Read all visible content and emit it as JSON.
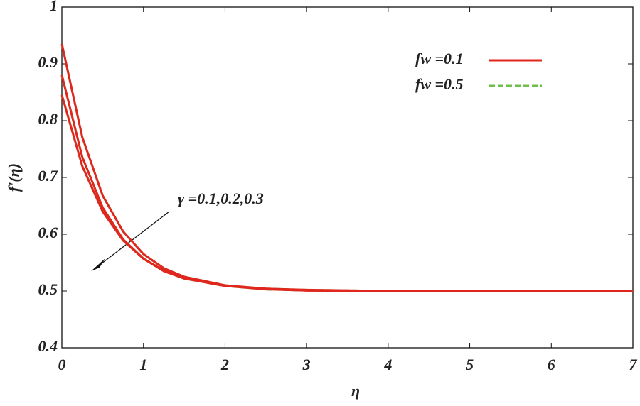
{
  "chart_data": {
    "type": "line",
    "x_label": "η",
    "y_label": "f'(η)",
    "annotation": "γ =0.1,0.2,0.3",
    "xlim": [
      0,
      7
    ],
    "xticks": [
      0,
      1,
      2,
      3,
      4,
      5,
      6,
      7
    ],
    "ylim": [
      0.4,
      1
    ],
    "yticks": [
      0.4,
      0.5,
      0.6,
      0.7,
      0.8,
      0.9,
      1
    ],
    "x": [
      0,
      0.25,
      0.5,
      0.75,
      1,
      1.25,
      1.5,
      2,
      2.5,
      3,
      4,
      5,
      6,
      7
    ],
    "series": [
      {
        "name": "fw =0.5",
        "color": "#6fc04a",
        "dashed": true,
        "curves": [
          {
            "values": [
              0.935,
              0.771,
              0.668,
              0.605,
              0.565,
              0.54,
              0.525,
              0.51,
              0.504,
              0.501,
              0.5,
              0.5,
              0.5,
              0.5
            ]
          },
          {
            "values": [
              0.88,
              0.736,
              0.647,
              0.591,
              0.557,
              0.535,
              0.522,
              0.509,
              0.503,
              0.501,
              0.5,
              0.5,
              0.5,
              0.5
            ]
          },
          {
            "values": [
              0.845,
              0.72,
              0.64,
              0.589,
              0.557,
              0.536,
              0.523,
              0.509,
              0.504,
              0.502,
              0.5,
              0.5,
              0.5,
              0.5
            ]
          }
        ]
      },
      {
        "name": "fw =0.1",
        "color": "#e0271e",
        "dashed": false,
        "curves": [
          {
            "values": [
              0.935,
              0.771,
              0.668,
              0.605,
              0.565,
              0.54,
              0.525,
              0.51,
              0.504,
              0.501,
              0.5,
              0.5,
              0.5,
              0.5
            ]
          },
          {
            "values": [
              0.88,
              0.736,
              0.647,
              0.591,
              0.557,
              0.535,
              0.522,
              0.509,
              0.503,
              0.501,
              0.5,
              0.5,
              0.5,
              0.5
            ]
          },
          {
            "values": [
              0.845,
              0.72,
              0.64,
              0.589,
              0.557,
              0.536,
              0.523,
              0.509,
              0.504,
              0.502,
              0.5,
              0.5,
              0.5,
              0.5
            ]
          }
        ]
      }
    ]
  }
}
